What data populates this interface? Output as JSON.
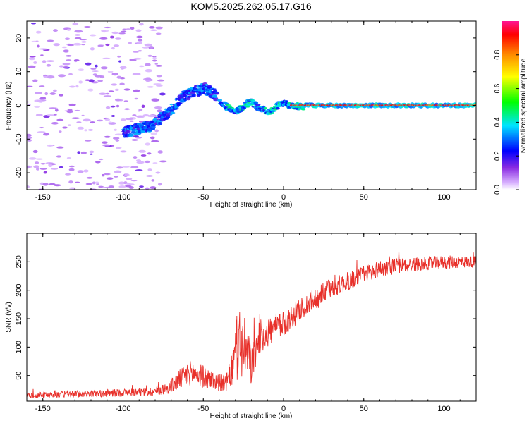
{
  "title": "KOM5.2025.262.05.17.G16",
  "chart_data": [
    {
      "type": "heatmap",
      "title": "KOM5.2025.262.05.17.G16",
      "xlabel": "Height of straight line (km)",
      "ylabel": "Frequency (Hz)",
      "xlim": [
        -160,
        120
      ],
      "ylim": [
        -25,
        25
      ],
      "xticks": [
        -150,
        -100,
        -50,
        0,
        50,
        100
      ],
      "yticks": [
        -20,
        -10,
        0,
        10,
        20
      ],
      "colorbar": {
        "label": "Normalized spectral amplitude",
        "range": [
          0,
          1
        ],
        "ticks": [
          "0.0",
          "0.2",
          "0.4",
          "0.6",
          "0.8"
        ],
        "colors": [
          "#ffffff",
          "#d9b3ff",
          "#8a2be2",
          "#0000ff",
          "#00e5ff",
          "#00ff00",
          "#ffff00",
          "#ff8c00",
          "#ff0000",
          "#ff1493"
        ]
      },
      "features": [
        {
          "name": "noise scatter",
          "x_range": [
            -160,
            -75
          ],
          "freq_range": [
            -25,
            25
          ],
          "amplitude": 0.1
        },
        {
          "name": "rising track",
          "x": [
            -100,
            -82,
            -70,
            -62,
            -50,
            -42
          ],
          "freq": [
            -8,
            -6,
            -1,
            3,
            5,
            3
          ],
          "amplitude": 0.3
        },
        {
          "name": "wavy track",
          "x": [
            -40,
            -30,
            -25,
            -20,
            -15,
            -8,
            -2,
            5,
            12
          ],
          "freq": [
            1,
            -2,
            0,
            1,
            -1,
            -2,
            1,
            0,
            -0.5
          ],
          "amplitude": 0.4
        },
        {
          "name": "stable carrier",
          "x_range": [
            5,
            120
          ],
          "freq": 0,
          "amplitude": 0.95
        }
      ]
    },
    {
      "type": "line",
      "xlabel": "Height of straight line (km)",
      "ylabel": "SNR (v/v)",
      "xlim": [
        -160,
        120
      ],
      "ylim": [
        5,
        300
      ],
      "xticks": [
        -150,
        -100,
        -50,
        0,
        50,
        100
      ],
      "yticks": [
        50,
        100,
        150,
        200,
        250
      ],
      "series": [
        {
          "name": "SNR",
          "color": "#e8302a",
          "x": [
            -160,
            -140,
            -120,
            -100,
            -80,
            -72,
            -65,
            -58,
            -50,
            -42,
            -36,
            -32,
            -28,
            -24,
            -20,
            -15,
            -10,
            -5,
            0,
            10,
            20,
            30,
            40,
            50,
            60,
            70,
            80,
            90,
            100,
            110,
            120
          ],
          "y": [
            15,
            17,
            18,
            20,
            22,
            28,
            42,
            55,
            48,
            40,
            35,
            60,
            110,
            95,
            70,
            118,
            125,
            135,
            140,
            165,
            185,
            205,
            215,
            228,
            238,
            243,
            245,
            247,
            249,
            250,
            250
          ],
          "noise": [
            5,
            6,
            6,
            7,
            8,
            10,
            18,
            22,
            20,
            16,
            15,
            30,
            70,
            55,
            40,
            30,
            28,
            24,
            22,
            20,
            20,
            18,
            17,
            16,
            15,
            14,
            13,
            12,
            12,
            11,
            10
          ]
        }
      ]
    }
  ]
}
